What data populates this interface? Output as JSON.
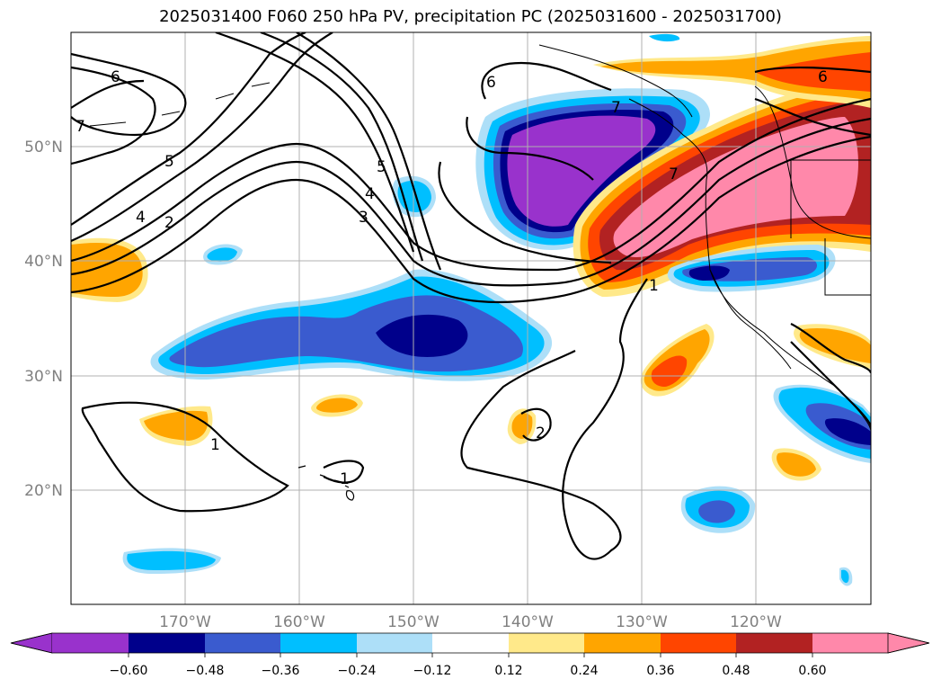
{
  "title": "2025031400 F060 250 hPa PV, precipitation PC (2025031600 - 2025031700)",
  "map": {
    "lat_labels": [
      "50°N",
      "40°N",
      "30°N",
      "20°N"
    ],
    "lon_labels": [
      "170°W",
      "160°W",
      "150°W",
      "140°W",
      "130°W",
      "120°W"
    ],
    "pv_contour_labels": [
      "6",
      "7",
      "5",
      "4",
      "2",
      "6",
      "5",
      "4",
      "3",
      "1",
      "7",
      "6",
      "1",
      "2",
      "1",
      "7"
    ]
  },
  "colorbar": {
    "tick_labels": [
      "−0.60",
      "−0.48",
      "−0.36",
      "−0.24",
      "−0.12",
      "0.12",
      "0.24",
      "0.36",
      "0.48",
      "0.60"
    ],
    "colors": {
      "lt_-0.60": "#9932CC",
      "-0.60_-0.48": "#00008B",
      "-0.48_-0.36": "#3A5BCF",
      "-0.36_-0.24": "#00BFFF",
      "-0.24_-0.12": "#ADDFF8",
      "-0.12_0.12": "#FFFFFF",
      "0.12_0.24": "#FFE98A",
      "0.24_0.36": "#FFA500",
      "0.36_0.48": "#FF4500",
      "0.48_0.60": "#B22222",
      "gt_0.60": "#FF88AA"
    }
  }
}
